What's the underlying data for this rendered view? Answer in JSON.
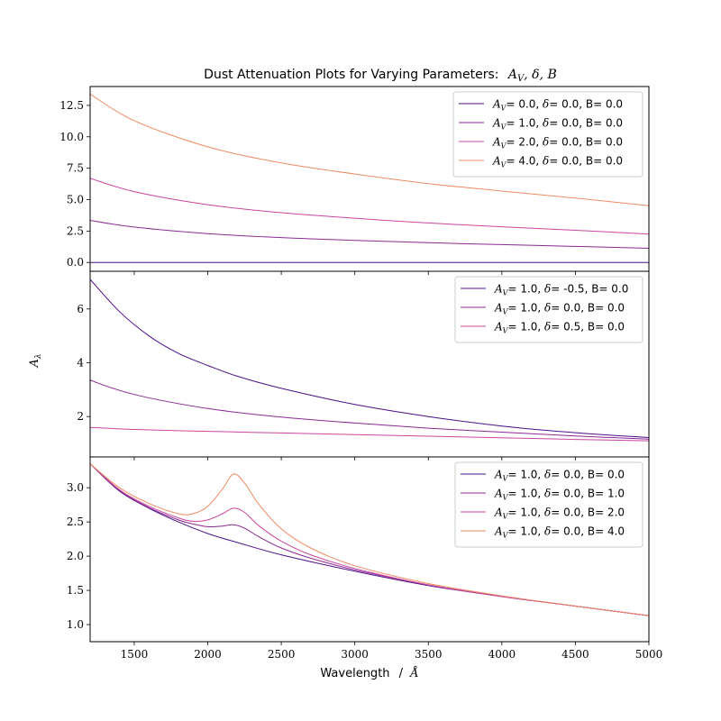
{
  "chart_data": {
    "type": "line",
    "title": "Dust Attenuation Plots for Varying Parameters:",
    "title_math": {
      "A": "A",
      "V": "V",
      "rest": ", δ, B"
    },
    "xlabel": "Wavelength",
    "xlabel_sep": "/",
    "xlabel_unit": "Å",
    "ylabel": {
      "A": "A",
      "sub": "λ"
    },
    "xlim": [
      1200,
      5000
    ],
    "xticks": [
      1500,
      2000,
      2500,
      3000,
      3500,
      4000,
      4500,
      5000
    ],
    "panels": [
      {
        "ylim": [
          -0.7,
          14.0
        ],
        "yticks": [
          "0.0",
          "2.5",
          "5.0",
          "7.5",
          "10.0",
          "12.5"
        ],
        "legend_loc": "upper right",
        "series": [
          {
            "name": "A_V= 0.0, δ= 0.0, B= 0.0",
            "lab_av": "= 0.0,",
            "lab_rest": "= 0.0, B= 0.0",
            "color": "#4b0f8a",
            "x": [
              1200,
              1500,
              2000,
              2500,
              3000,
              3500,
              4000,
              4500,
              5000
            ],
            "y": [
              0,
              0,
              0,
              0,
              0,
              0,
              0,
              0,
              0
            ]
          },
          {
            "name": "A_V= 1.0, δ= 0.0, B= 0.0",
            "lab_av": "= 1.0,",
            "lab_rest": "= 0.0, B= 0.0",
            "color": "#8c2a95",
            "x": [
              1200,
              1500,
              2000,
              2500,
              3000,
              3500,
              4000,
              4500,
              5000
            ],
            "y": [
              3.35,
              2.82,
              2.3,
              1.98,
              1.76,
              1.57,
              1.42,
              1.28,
              1.13
            ]
          },
          {
            "name": "A_V= 2.0, δ= 0.0, B= 0.0",
            "lab_av": "= 2.0,",
            "lab_rest": "= 0.0, B= 0.0",
            "color": "#c9469d",
            "x": [
              1200,
              1500,
              2000,
              2500,
              3000,
              3500,
              4000,
              4500,
              5000
            ],
            "y": [
              6.7,
              5.64,
              4.6,
              3.96,
              3.52,
              3.14,
              2.84,
              2.56,
              2.26
            ]
          },
          {
            "name": "A_V= 4.0, δ= 0.0, B= 0.0",
            "lab_av": "= 4.0,",
            "lab_rest": "= 0.0, B= 0.0",
            "color": "#ef8a62",
            "x": [
              1200,
              1500,
              2000,
              2500,
              3000,
              3500,
              4000,
              4500,
              5000
            ],
            "y": [
              13.4,
              11.28,
              9.2,
              7.92,
              7.04,
              6.28,
              5.68,
              5.12,
              4.52
            ]
          }
        ]
      },
      {
        "ylim": [
          0.5,
          7.4
        ],
        "yticks": [
          "2",
          "4",
          "6"
        ],
        "legend_loc": "upper right",
        "series": [
          {
            "name": "A_V= 1.0, δ= -0.5, B= 0.0",
            "lab_av": "= 1.0,",
            "lab_rest": "= -0.5, B= 0.0",
            "color": "#4b0f8a",
            "x": [
              1200,
              1400,
              1600,
              1800,
              2000,
              2200,
              2500,
              3000,
              3500,
              4000,
              4500,
              5000
            ],
            "y": [
              7.1,
              5.9,
              5.0,
              4.35,
              3.9,
              3.5,
              3.05,
              2.45,
              2.0,
              1.65,
              1.4,
              1.22
            ]
          },
          {
            "name": "A_V= 1.0, δ= 0.0, B= 0.0",
            "lab_av": "= 1.0,",
            "lab_rest": "= 0.0, B= 0.0",
            "color": "#8c2a95",
            "x": [
              1200,
              1500,
              2000,
              2500,
              3000,
              3500,
              4000,
              4500,
              5000
            ],
            "y": [
              3.35,
              2.82,
              2.3,
              1.98,
              1.76,
              1.57,
              1.42,
              1.28,
              1.16
            ]
          },
          {
            "name": "A_V= 1.0, δ= 0.5, B= 0.0",
            "lab_av": "= 1.0,",
            "lab_rest": "= 0.5, B= 0.0",
            "color": "#c9469d",
            "x": [
              1200,
              1500,
              2000,
              2500,
              3000,
              3500,
              4000,
              4500,
              5000
            ],
            "y": [
              1.6,
              1.52,
              1.45,
              1.39,
              1.33,
              1.27,
              1.21,
              1.15,
              1.1
            ]
          }
        ]
      },
      {
        "ylim": [
          0.75,
          3.45
        ],
        "yticks": [
          "1.0",
          "1.5",
          "2.0",
          "2.5",
          "3.0"
        ],
        "legend_loc": "upper right",
        "series": [
          {
            "name": "A_V= 1.0, δ= 0.0, B= 0.0",
            "lab_av": "= 1.0,",
            "lab_rest": "= 0.0, B= 0.0",
            "color": "#4b0f8a",
            "x": [
              1200,
              1400,
              1600,
              1800,
              2000,
              2200,
              2500,
              3000,
              3500,
              4000,
              4500,
              5000
            ],
            "y": [
              3.35,
              2.95,
              2.7,
              2.5,
              2.33,
              2.2,
              2.02,
              1.78,
              1.57,
              1.41,
              1.27,
              1.13
            ]
          },
          {
            "name": "A_V= 1.0, δ= 0.0, B= 1.0",
            "lab_av": "= 1.0,",
            "lab_rest": "= 0.0, B= 1.0",
            "color": "#8c2a95",
            "x": [
              1200,
              1400,
              1600,
              1800,
              1900,
              2000,
              2100,
              2175,
              2250,
              2350,
              2500,
              2700,
              3000,
              3500,
              4000,
              4500,
              5000
            ],
            "y": [
              3.35,
              2.96,
              2.71,
              2.53,
              2.47,
              2.43,
              2.44,
              2.46,
              2.41,
              2.28,
              2.12,
              1.97,
              1.8,
              1.58,
              1.41,
              1.27,
              1.13
            ]
          },
          {
            "name": "A_V= 1.0, δ= 0.0, B= 2.0",
            "lab_av": "= 1.0,",
            "lab_rest": "= 0.0, B= 2.0",
            "color": "#c9469d",
            "x": [
              1200,
              1400,
              1600,
              1800,
              1900,
              2000,
              2100,
              2175,
              2250,
              2350,
              2500,
              2700,
              3000,
              3500,
              4000,
              4500,
              5000
            ],
            "y": [
              3.35,
              2.97,
              2.73,
              2.56,
              2.51,
              2.53,
              2.62,
              2.7,
              2.64,
              2.44,
              2.22,
              2.02,
              1.82,
              1.58,
              1.41,
              1.27,
              1.13
            ]
          },
          {
            "name": "A_V= 1.0, δ= 0.0, B= 4.0",
            "lab_av": "= 1.0,",
            "lab_rest": "= 0.0, B= 4.0",
            "color": "#ef8a62",
            "x": [
              1200,
              1400,
              1600,
              1800,
              1900,
              2000,
              2100,
              2175,
              2250,
              2350,
              2500,
              2700,
              3000,
              3500,
              4000,
              4500,
              5000
            ],
            "y": [
              3.35,
              3.0,
              2.77,
              2.62,
              2.62,
              2.73,
              2.98,
              3.2,
              3.07,
              2.75,
              2.4,
              2.12,
              1.86,
              1.6,
              1.42,
              1.27,
              1.13
            ]
          }
        ]
      }
    ]
  }
}
